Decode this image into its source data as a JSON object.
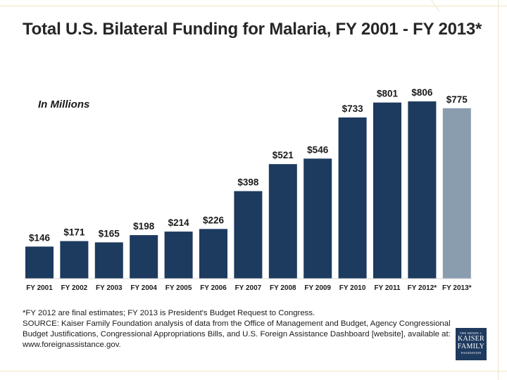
{
  "colors": {
    "bar": "#1d3a5f",
    "bar_estimate": "#8a9daf",
    "text": "#1a1a1a",
    "frame_line": "#e8d9a6"
  },
  "chart_data": {
    "type": "bar",
    "title": "Total U.S. Bilateral Funding for Malaria, FY 2001 - FY 2013*",
    "unit_label": "In Millions",
    "categories": [
      "FY 2001",
      "FY 2002",
      "FY 2003",
      "FY 2004",
      "FY 2005",
      "FY 2006",
      "FY 2007",
      "FY 2008",
      "FY 2009",
      "FY 2010",
      "FY 2011",
      "FY 2012*",
      "FY 2013*"
    ],
    "values": [
      146,
      171,
      165,
      198,
      214,
      226,
      398,
      521,
      546,
      733,
      801,
      806,
      775
    ],
    "data_labels": [
      "$146",
      "$171",
      "$165",
      "$198",
      "$214",
      "$226",
      "$398",
      "$521",
      "$546",
      "$733",
      "$801",
      "$806",
      "$775"
    ],
    "estimate_categories": [
      "FY 2013*"
    ],
    "xlabel": "",
    "ylabel": "",
    "ylim": [
      0,
      900
    ],
    "grid": false
  },
  "notes": {
    "line1": "*FY 2012 are final estimates; FY 2013 is President's Budget Request to Congress.",
    "line2": "SOURCE: Kaiser Family Foundation analysis of data from the Office of Management and Budget, Agency Congressional",
    "line3": "Budget Justifications, Congressional Appropriations Bills, and U.S. Foreign Assistance Dashboard [website], available at:",
    "line4": "www.foreignassistance.gov."
  },
  "logo": {
    "line1": "THE HENRY J.",
    "line2": "KAISER",
    "line3": "FAMILY",
    "line4": "FOUNDATION"
  }
}
